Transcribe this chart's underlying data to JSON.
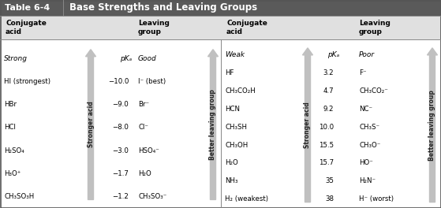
{
  "title": "Table 6-4",
  "title_text": "Base Strengths and Leaving Groups",
  "left_strong_label": "Strong",
  "left_weak_label": "Weak",
  "pka_label": "pKₐ",
  "left_good_label": "Good",
  "right_poor_label": "Poor",
  "left_data": [
    [
      "HI (strongest)",
      "−10.0",
      "I⁻ (best)"
    ],
    [
      "HBr",
      "−9.0",
      "Br⁻"
    ],
    [
      "HCl",
      "−8.0",
      "Cl⁻"
    ],
    [
      "H₂SO₄",
      "−3.0",
      "HSO₄⁻"
    ],
    [
      "H₃O⁺",
      "−1.7",
      "H₂O"
    ],
    [
      "CH₃SO₃H",
      "−1.2",
      "CH₃SO₃⁻"
    ]
  ],
  "right_data": [
    [
      "HF",
      "3.2",
      "F⁻"
    ],
    [
      "CH₃CO₂H",
      "4.7",
      "CH₃CO₂⁻"
    ],
    [
      "HCN",
      "9.2",
      "NC⁻"
    ],
    [
      "CH₃SH",
      "10.0",
      "CH₃S⁻"
    ],
    [
      "CH₃OH",
      "15.5",
      "CH₃O⁻"
    ],
    [
      "H₂O",
      "15.7",
      "HO⁻"
    ],
    [
      "NH₃",
      "35",
      "H₂N⁻"
    ],
    [
      "H₂ (weakest)",
      "38",
      "H⁻ (worst)"
    ]
  ],
  "arrow_color": "#c0c0c0",
  "stronger_acid_label": "Stronger acid",
  "better_leaving_label": "Better leaving group",
  "bg_color": "#ffffff",
  "title_bg": "#555555",
  "header_bg": "#d8d8d8"
}
